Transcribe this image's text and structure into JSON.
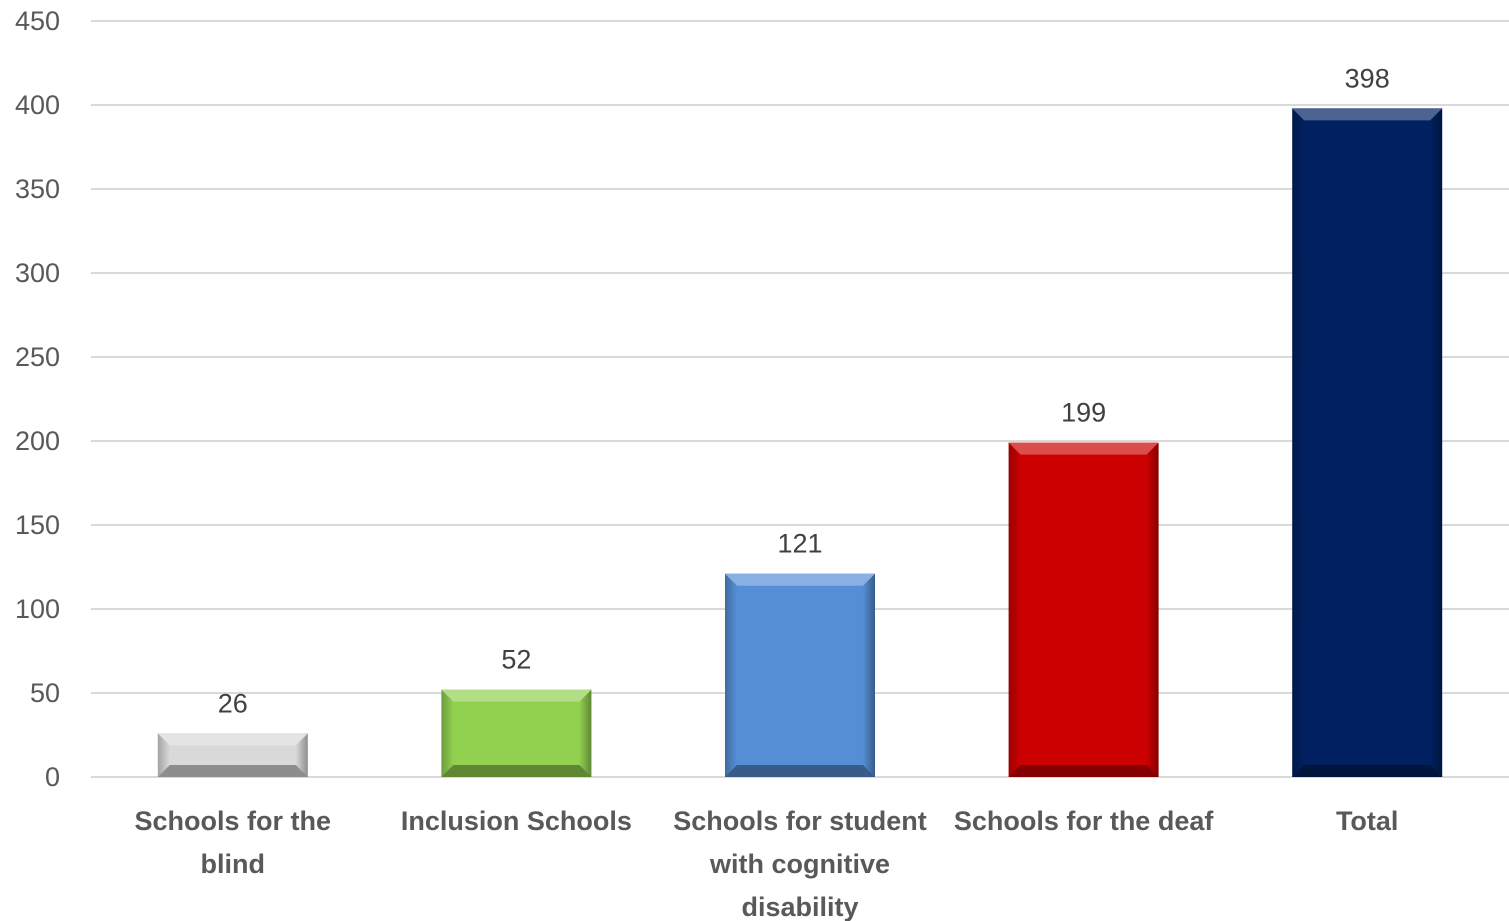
{
  "chart_data": {
    "type": "bar",
    "title": "",
    "xlabel": "",
    "ylabel": "",
    "categories": [
      [
        "Schools for the",
        "blind"
      ],
      [
        "Inclusion Schools"
      ],
      [
        "Schools for student",
        "with cognitive",
        "disability"
      ],
      [
        "Schools for the deaf"
      ],
      [
        "Total"
      ]
    ],
    "values": [
      26,
      52,
      121,
      199,
      398
    ],
    "data_labels": [
      "26",
      "52",
      "121",
      "199",
      "398"
    ],
    "ylim": [
      0,
      450
    ],
    "yticks": [
      0,
      50,
      100,
      150,
      200,
      250,
      300,
      350,
      400,
      450
    ],
    "ytick_labels": [
      "0",
      "50",
      "100",
      "150",
      "200",
      "250",
      "300",
      "350",
      "400",
      "450"
    ],
    "grid": true,
    "legend": "none",
    "bar_colors": [
      "#d9d9d9",
      "#92d050",
      "#558ed5",
      "#cc0000",
      "#002060"
    ]
  }
}
